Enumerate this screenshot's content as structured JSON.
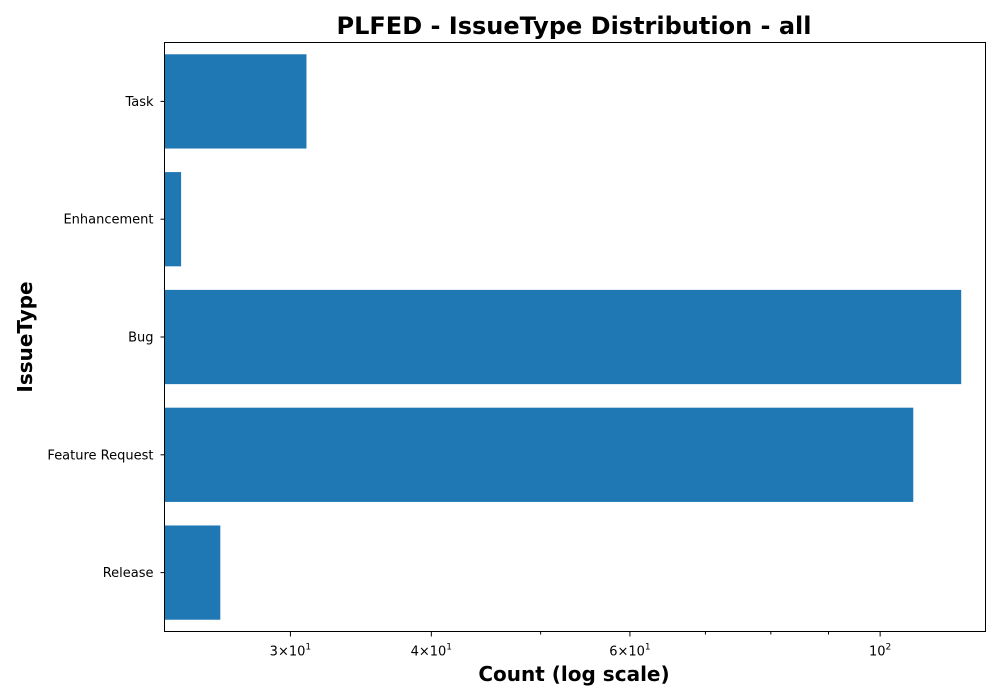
{
  "chart_data": {
    "type": "bar",
    "orientation": "horizontal",
    "title": "PLFED - IssueType Distribution - all",
    "xlabel": "Count (log scale)",
    "ylabel": "IssueType",
    "x_scale": "log",
    "xlim": [
      23.2,
      124
    ],
    "grid": false,
    "categories": [
      "Task",
      "Enhancement",
      "Bug",
      "Feature Request",
      "Release"
    ],
    "values": [
      31,
      24,
      118,
      107,
      26
    ],
    "bar_color": "#1f77b4",
    "x_ticks": [
      {
        "value": 30,
        "base": "3",
        "exp": "1"
      },
      {
        "value": 40,
        "base": "4",
        "exp": "1"
      },
      {
        "value": 60,
        "base": "6",
        "exp": "1"
      },
      {
        "value": 100,
        "base": "",
        "exp": "2"
      }
    ],
    "x_minor_ticks": [
      50,
      70,
      80,
      90
    ]
  }
}
